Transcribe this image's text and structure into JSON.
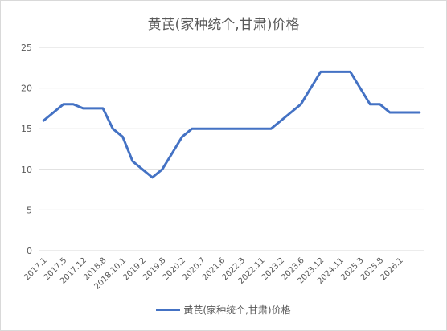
{
  "chart_data": {
    "type": "line",
    "title": "黄芪(家种统个,甘肃)价格",
    "xlabel": "",
    "ylabel": "",
    "ylim": [
      0,
      25
    ],
    "yticks": [
      0,
      5,
      10,
      15,
      20,
      25
    ],
    "grid": true,
    "legend_position": "bottom",
    "x_tick_labels": [
      "2017.1",
      "2017.5",
      "2017.12",
      "2018.8",
      "2018.10.1",
      "2019.2",
      "2019.8",
      "2020.2",
      "2020.7",
      "2021.6",
      "2022.3",
      "2022.11",
      "2023.2",
      "2023.6",
      "2023.12",
      "2024.11",
      "2025.3",
      "2025.8",
      "2026.1"
    ],
    "series": [
      {
        "name": "黄芪(家种统个,甘肃)价格",
        "color": "#4472c4",
        "values": [
          16,
          17,
          18,
          18,
          17.5,
          17.5,
          17.5,
          15,
          14,
          11,
          10,
          9,
          10,
          12,
          14,
          15,
          15,
          15,
          15,
          15,
          15,
          15,
          15,
          15,
          16,
          17,
          18,
          20,
          22,
          22,
          22,
          22,
          20,
          18,
          18,
          17,
          17,
          17,
          17
        ]
      }
    ]
  }
}
